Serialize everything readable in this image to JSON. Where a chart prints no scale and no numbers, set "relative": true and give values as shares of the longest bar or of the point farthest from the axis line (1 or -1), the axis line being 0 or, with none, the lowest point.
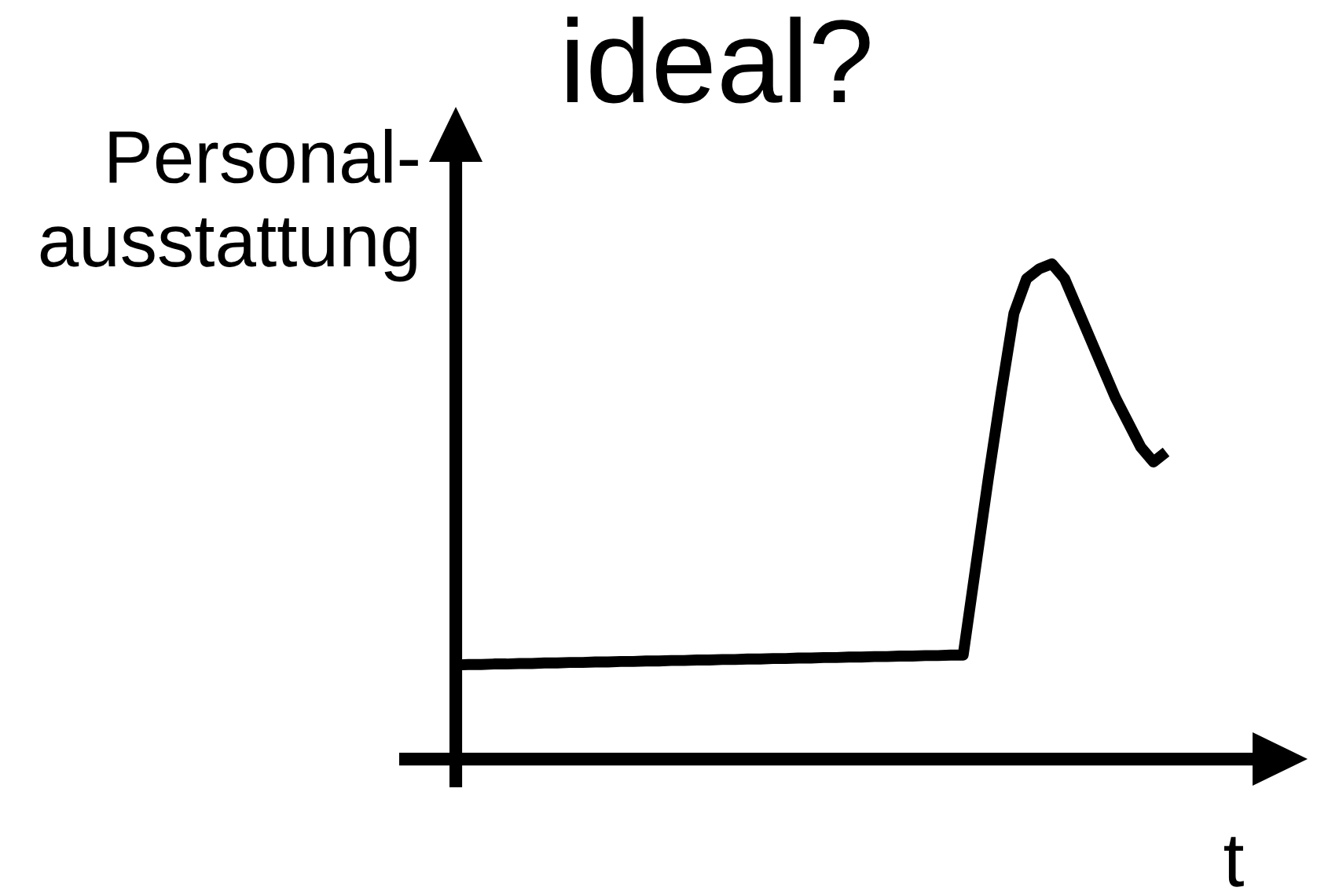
{
  "chart_data": {
    "type": "line",
    "title": "ideal?",
    "xlabel": "t",
    "ylabel": "Personal-\nausstattung",
    "relative": true,
    "categories": [
      null,
      null,
      null,
      null,
      null,
      null,
      null,
      null,
      null,
      null,
      null,
      null,
      null,
      null,
      null,
      null,
      null,
      null,
      null,
      null,
      null,
      null,
      null,
      null,
      null,
      null,
      null,
      null,
      null,
      null,
      null,
      null,
      null,
      null,
      null,
      null,
      null,
      null,
      null,
      null,
      null,
      null,
      null,
      null,
      null,
      null,
      null,
      null,
      null,
      null,
      null,
      null,
      null,
      null,
      null,
      null,
      null
    ],
    "series": [
      {
        "color": "#000000",
        "values": [
          0.19,
          0.191,
          0.191,
          0.192,
          0.192,
          0.193,
          0.193,
          0.194,
          0.194,
          0.195,
          0.195,
          0.196,
          0.196,
          0.197,
          0.197,
          0.198,
          0.198,
          0.199,
          0.199,
          0.2,
          0.2,
          0.201,
          0.201,
          0.202,
          0.202,
          0.203,
          0.203,
          0.204,
          0.204,
          0.205,
          0.205,
          0.206,
          0.206,
          0.207,
          0.207,
          0.208,
          0.208,
          0.209,
          0.209,
          0.21,
          0.21,
          0.39,
          0.57,
          0.74,
          0.9,
          0.97,
          0.99,
          1,
          0.97,
          0.91,
          0.85,
          0.79,
          0.73,
          0.68,
          0.63,
          0.6,
          0.62
        ]
      }
    ],
    "line_style": "solid",
    "marker": "none"
  }
}
